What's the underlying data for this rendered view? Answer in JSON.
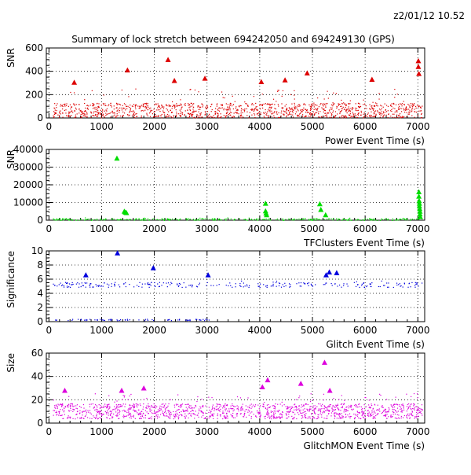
{
  "header": {
    "stamp": "z2/01/12  10.52",
    "title": "Summary of lock stretch between 694242050 and 694249130 (GPS)"
  },
  "chart_data": [
    {
      "type": "scatter",
      "ylabel": "SNR",
      "xlabel": "Power Event Time (s)",
      "xlim": [
        -50,
        7130
      ],
      "ylim": [
        0,
        600
      ],
      "xticks": [
        "0",
        "1000",
        "2000",
        "3000",
        "4000",
        "5000",
        "6000",
        "7000"
      ],
      "yticks": [
        "0",
        "200",
        "400",
        "600"
      ],
      "grid": true,
      "series": [
        {
          "color": "#dd0000",
          "marker": "triangle",
          "x": [
            480,
            1490,
            2260,
            2380,
            2960,
            4030,
            4480,
            4900,
            6130,
            7010,
            7010,
            7020
          ],
          "y": [
            305,
            410,
            500,
            320,
            340,
            310,
            325,
            385,
            330,
            490,
            440,
            380
          ]
        }
      ],
      "noise": {
        "color": "#dd0000",
        "count": 1300,
        "band": [
          5,
          130
        ],
        "spikes_to": 260
      }
    },
    {
      "type": "scatter",
      "ylabel": "SNR",
      "xlabel": "TFClusters Event Time (s)",
      "xlim": [
        -50,
        7130
      ],
      "ylim": [
        0,
        40000
      ],
      "xticks": [
        "0",
        "1000",
        "2000",
        "3000",
        "4000",
        "5000",
        "6000",
        "7000"
      ],
      "yticks": [
        "0",
        "10000",
        "20000",
        "30000",
        "40000"
      ],
      "grid": true,
      "series": [
        {
          "color": "#00dd00",
          "marker": "triangle",
          "x": [
            1290,
            1430,
            1450,
            1470,
            4110,
            4110,
            4120,
            4130,
            5140,
            5160,
            5250,
            7020,
            7020,
            7025,
            7030,
            7030,
            7035,
            7040,
            7040,
            7045
          ],
          "y": [
            35000,
            5000,
            4500,
            4200,
            9500,
            5200,
            4000,
            3000,
            9200,
            6000,
            3000,
            16000,
            13500,
            11000,
            9500,
            8000,
            6500,
            5000,
            3500,
            2000
          ]
        }
      ],
      "noise": {
        "color": "#00dd00",
        "count": 320,
        "band": [
          100,
          1200
        ],
        "spikes_to": 1600
      }
    },
    {
      "type": "scatter",
      "ylabel": "Significance",
      "xlabel": "Glitch Event Time (s)",
      "xlim": [
        -50,
        7130
      ],
      "ylim": [
        0,
        10
      ],
      "xticks": [
        "0",
        "1000",
        "2000",
        "3000",
        "4000",
        "5000",
        "6000",
        "7000"
      ],
      "yticks": [
        "0",
        "2",
        "4",
        "6",
        "8",
        "10"
      ],
      "grid": true,
      "series": [
        {
          "color": "#0000dd",
          "marker": "triangle",
          "x": [
            700,
            1300,
            1980,
            3020,
            5260,
            5320,
            5460
          ],
          "y": [
            6.6,
            9.7,
            7.6,
            6.6,
            6.6,
            7.0,
            6.9
          ]
        }
      ],
      "noise": {
        "color": "#0000dd",
        "count": 260,
        "band": [
          4.9,
          5.6
        ],
        "spikes_to": 5.8
      }
    },
    {
      "type": "scatter",
      "ylabel": "Size",
      "xlabel": "GlitchMON Event Time (s)",
      "xlim": [
        -50,
        7130
      ],
      "ylim": [
        0,
        60
      ],
      "xticks": [
        "0",
        "1000",
        "2000",
        "3000",
        "4000",
        "5000",
        "6000",
        "7000"
      ],
      "yticks": [
        "0",
        "20",
        "40",
        "60"
      ],
      "grid": true,
      "series": [
        {
          "color": "#dd00dd",
          "marker": "triangle",
          "x": [
            300,
            1380,
            1800,
            4050,
            4150,
            4780,
            5230,
            5330
          ],
          "y": [
            28,
            28,
            30,
            31,
            37,
            34,
            52,
            28
          ]
        }
      ],
      "noise": {
        "color": "#dd00dd",
        "count": 1400,
        "band": [
          4,
          17
        ],
        "spikes_to": 26
      }
    }
  ]
}
